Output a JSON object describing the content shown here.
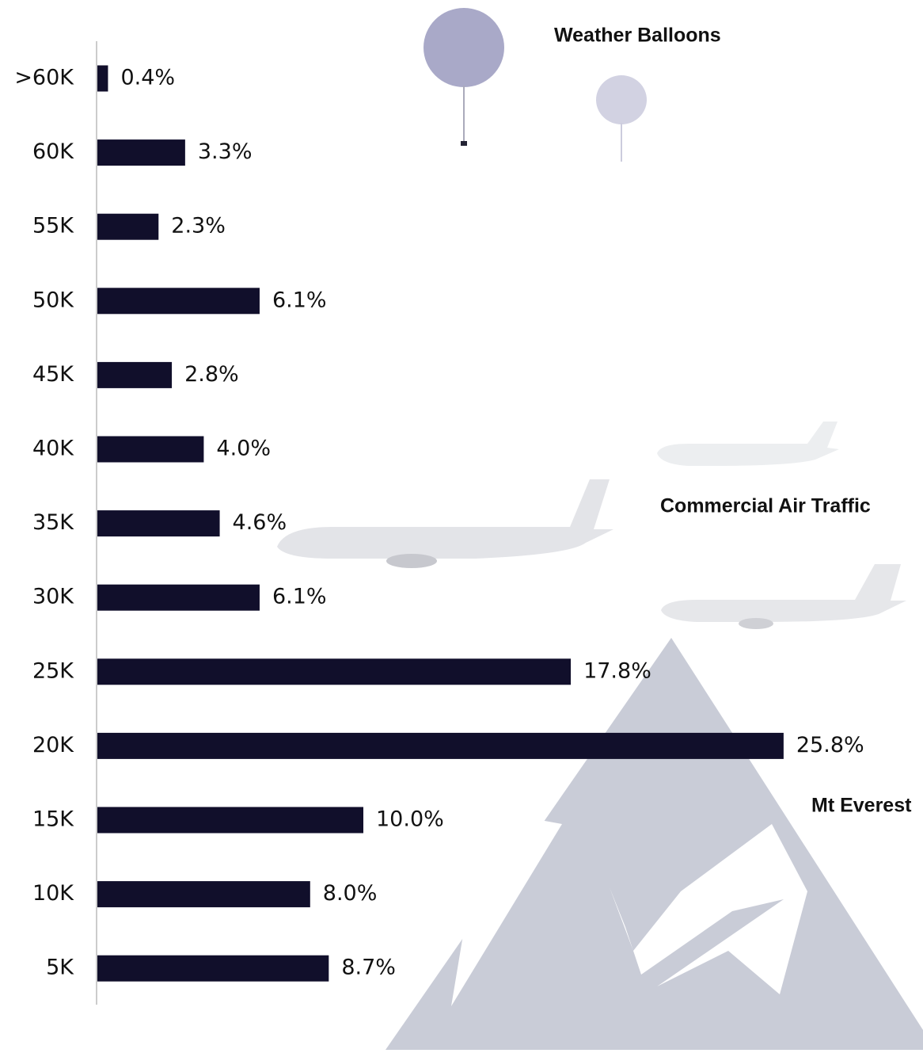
{
  "chart_data": {
    "type": "bar",
    "orientation": "horizontal",
    "categories": [
      ">60K",
      "60K",
      "55K",
      "50K",
      "45K",
      "40K",
      "35K",
      "30K",
      "25K",
      "20K",
      "15K",
      "10K",
      "5K"
    ],
    "values": [
      0.4,
      3.3,
      2.3,
      6.1,
      2.8,
      4.0,
      4.6,
      6.1,
      17.8,
      25.8,
      10.0,
      8.0,
      8.7
    ],
    "value_labels": [
      "0.4%",
      "3.3%",
      "2.3%",
      "6.1%",
      "2.8%",
      "4.0%",
      "4.6%",
      "6.1%",
      "17.8%",
      "25.8%",
      "10.0%",
      "8.0%",
      "8.7%"
    ],
    "color": "#110f2b",
    "xlim": [
      0,
      30
    ],
    "annotations": [
      "Weather Balloons",
      "Commercial Air Traffic",
      "Mt Everest"
    ]
  }
}
